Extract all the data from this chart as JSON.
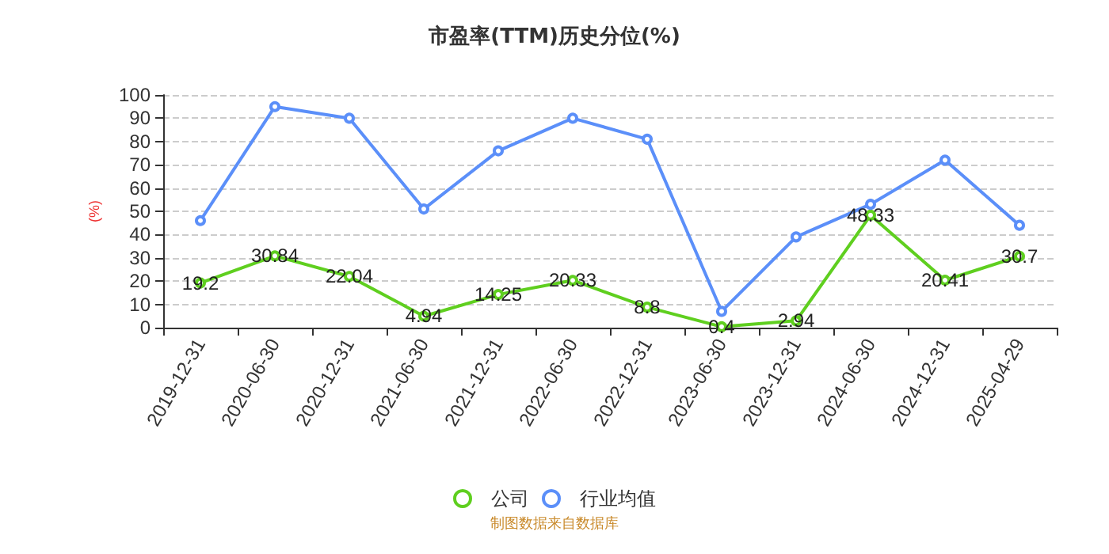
{
  "chart_data": {
    "type": "line",
    "title": "市盈率(TTM)历史分位(%)",
    "ylabel": "(%)",
    "categories": [
      "2019-12-31",
      "2020-06-30",
      "2020-12-31",
      "2021-06-30",
      "2021-12-31",
      "2022-06-30",
      "2022-12-31",
      "2023-06-30",
      "2023-12-31",
      "2024-06-30",
      "2024-12-31",
      "2025-04-29"
    ],
    "series": [
      {
        "name": "公司",
        "color": "#5fcf1f",
        "values": [
          19.2,
          30.84,
          22.04,
          4.94,
          14.25,
          20.33,
          8.8,
          0.4,
          2.94,
          48.33,
          20.41,
          30.7
        ],
        "value_labels": [
          "19.2",
          "30.84",
          "22.04",
          "4.94",
          "14.25",
          "20.33",
          "8.8",
          "0.4",
          "2.94",
          "48.33",
          "20.41",
          "30.7"
        ]
      },
      {
        "name": "行业均值",
        "color": "#5b8ff9",
        "values": [
          46,
          95,
          90,
          51,
          76,
          90,
          81,
          7,
          39,
          53,
          72,
          44
        ]
      }
    ],
    "ylim": [
      0,
      100
    ],
    "yticks": [
      0,
      10,
      20,
      30,
      40,
      50,
      60,
      70,
      80,
      90,
      100
    ],
    "grid": "y",
    "legend": "bottom",
    "marker": "circle",
    "line_style": "solid",
    "annotations": [
      "制图数据来自数据库"
    ]
  }
}
